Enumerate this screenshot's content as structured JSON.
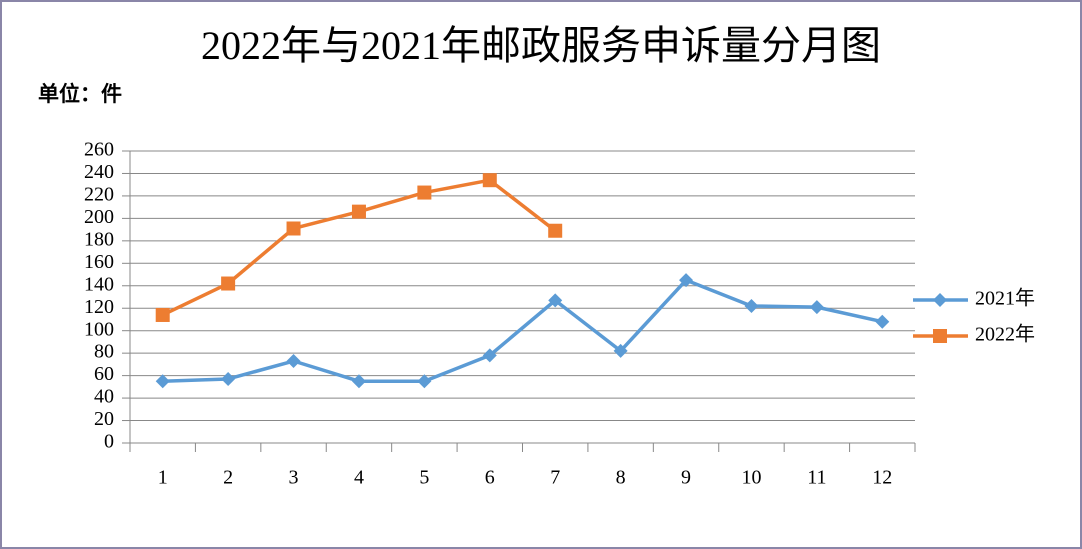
{
  "chart_data": {
    "type": "line",
    "title": "2022年与2021年邮政服务申诉量分月图",
    "unit_label": "单位：件",
    "categories": [
      "1",
      "2",
      "3",
      "4",
      "5",
      "6",
      "7",
      "8",
      "9",
      "10",
      "11",
      "12"
    ],
    "series": [
      {
        "name": "2021年",
        "color": "#5b9bd5",
        "marker": "diamond",
        "values": [
          55,
          57,
          73,
          55,
          55,
          78,
          127,
          82,
          145,
          122,
          121,
          108
        ]
      },
      {
        "name": "2022年",
        "color": "#ed7d31",
        "marker": "square",
        "values": [
          114,
          142,
          191,
          206,
          223,
          234,
          189,
          null,
          null,
          null,
          null,
          null
        ]
      }
    ],
    "ylim": [
      0,
      260
    ],
    "yticks": [
      0,
      20,
      40,
      60,
      80,
      100,
      120,
      140,
      160,
      180,
      200,
      220,
      240,
      260
    ],
    "grid": true,
    "legend": "right"
  }
}
